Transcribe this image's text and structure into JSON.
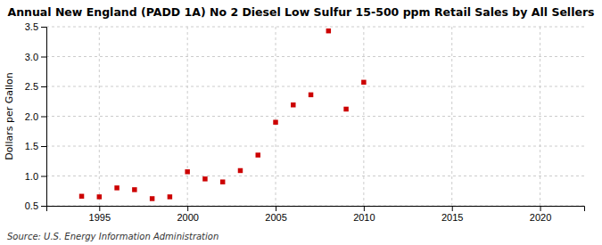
{
  "chart_data": {
    "type": "scatter",
    "title": "Annual New England (PADD 1A) No 2 Diesel Low Sulfur 15-500 ppm Retail Sales by All Sellers",
    "ylabel": "Dollars per Gallon",
    "annotations": [
      "Source: U.S. Energy Information Administration"
    ],
    "x": [
      1994,
      1995,
      1996,
      1997,
      1998,
      1999,
      2000,
      2001,
      2002,
      2003,
      2004,
      2005,
      2006,
      2007,
      2008,
      2009,
      2010
    ],
    "values": [
      0.66,
      0.65,
      0.8,
      0.77,
      0.62,
      0.65,
      1.07,
      0.95,
      0.9,
      1.09,
      1.35,
      1.9,
      2.19,
      2.36,
      3.43,
      2.12,
      2.57
    ],
    "color": "#cc0000",
    "marker": "square",
    "xlim": [
      1992,
      2022.5
    ],
    "ylim": [
      0.5,
      3.5
    ],
    "xticks": [
      1995,
      2000,
      2005,
      2010,
      2015,
      2020
    ],
    "yticks": [
      0.5,
      {
        "value": 1.0,
        "label": "1.0"
      },
      1.5,
      {
        "value": 2.0,
        "label": "2.0"
      },
      2.5,
      {
        "value": 3.0,
        "label": "3.0"
      },
      3.5
    ],
    "grid": true
  }
}
